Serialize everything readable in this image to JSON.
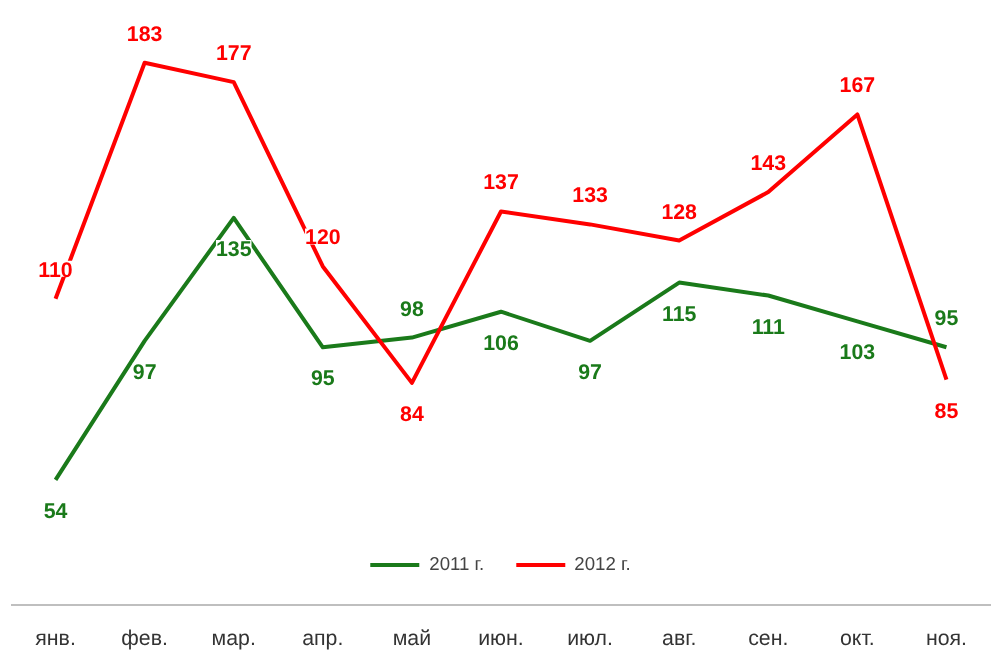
{
  "chart_data": {
    "type": "line",
    "categories": [
      "янв.",
      "фев.",
      "мар.",
      "апр.",
      "май",
      "июн.",
      "июл.",
      "авг.",
      "сен.",
      "окт.",
      "ноя."
    ],
    "series": [
      {
        "name": "2011 г.",
        "color": "#1a7a1a",
        "values": [
          54,
          97,
          135,
          95,
          98,
          106,
          97,
          115,
          111,
          103,
          95
        ]
      },
      {
        "name": "2012 г.",
        "color": "#ff0000",
        "values": [
          110,
          183,
          177,
          120,
          84,
          137,
          133,
          128,
          143,
          167,
          85
        ]
      }
    ],
    "data_labels": true,
    "legend": "bottom",
    "grid": false,
    "marker": "none",
    "line_style": "solid",
    "tick_labels": "x"
  }
}
